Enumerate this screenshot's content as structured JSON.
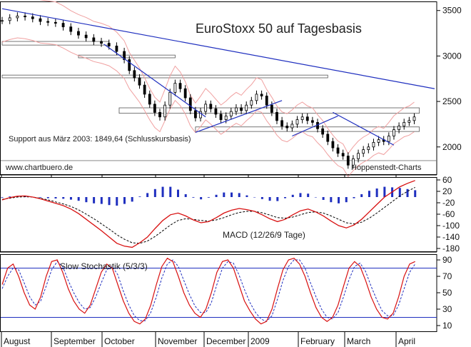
{
  "colors": {
    "candle": "#000000",
    "trendline": "#1f2fbf",
    "bands": "#f0a0a0",
    "macd_line": "#d81010",
    "signal_line": "#000000",
    "histogram": "#1f2fbf",
    "stoch_k": "#d81010",
    "stoch_d": "#1f2fbf",
    "grid": "#cccccc"
  },
  "chart_data": [
    {
      "type": "candlestick",
      "title": "EuroStoxx 50 auf Tagesbasis",
      "annotations": [
        "Support aus März 2003: 1849,64 (Schlusskursbasis)",
        "www.chartbuero.de",
        "Hoppenstedt-Charts"
      ],
      "yticks": [
        2000,
        2500,
        3000,
        3500
      ],
      "ylim": [
        1700,
        3600
      ],
      "support_level": 1849.64,
      "x_months": [
        "August",
        "September",
        "October",
        "November",
        "December",
        "2009",
        "February",
        "March",
        "April"
      ],
      "x_range_days": [
        0,
        170
      ],
      "close_series": [
        [
          0,
          3390
        ],
        [
          3,
          3420
        ],
        [
          6,
          3440
        ],
        [
          9,
          3430
        ],
        [
          12,
          3410
        ],
        [
          15,
          3380
        ],
        [
          18,
          3370
        ],
        [
          21,
          3360
        ],
        [
          24,
          3320
        ],
        [
          27,
          3270
        ],
        [
          30,
          3230
        ],
        [
          33,
          3200
        ],
        [
          36,
          3160
        ],
        [
          39,
          3140
        ],
        [
          42,
          3110
        ],
        [
          45,
          3050
        ],
        [
          48,
          2960
        ],
        [
          50,
          2840
        ],
        [
          52,
          2760
        ],
        [
          54,
          2680
        ],
        [
          56,
          2580
        ],
        [
          58,
          2470
        ],
        [
          60,
          2380
        ],
        [
          62,
          2330
        ],
        [
          64,
          2460
        ],
        [
          66,
          2600
        ],
        [
          68,
          2700
        ],
        [
          70,
          2640
        ],
        [
          72,
          2540
        ],
        [
          74,
          2400
        ],
        [
          76,
          2320
        ],
        [
          78,
          2390
        ],
        [
          80,
          2470
        ],
        [
          82,
          2420
        ],
        [
          84,
          2360
        ],
        [
          86,
          2300
        ],
        [
          88,
          2340
        ],
        [
          90,
          2390
        ],
        [
          92,
          2430
        ],
        [
          94,
          2400
        ],
        [
          96,
          2460
        ],
        [
          98,
          2510
        ],
        [
          100,
          2580
        ],
        [
          102,
          2560
        ],
        [
          104,
          2460
        ],
        [
          106,
          2380
        ],
        [
          108,
          2290
        ],
        [
          110,
          2230
        ],
        [
          112,
          2210
        ],
        [
          114,
          2250
        ],
        [
          116,
          2300
        ],
        [
          118,
          2330
        ],
        [
          120,
          2290
        ],
        [
          122,
          2270
        ],
        [
          124,
          2200
        ],
        [
          126,
          2140
        ],
        [
          128,
          2060
        ],
        [
          130,
          1990
        ],
        [
          132,
          1930
        ],
        [
          134,
          1900
        ],
        [
          136,
          1800
        ],
        [
          138,
          1870
        ],
        [
          140,
          1930
        ],
        [
          142,
          1970
        ],
        [
          144,
          2000
        ],
        [
          146,
          2050
        ],
        [
          148,
          2080
        ],
        [
          150,
          2060
        ],
        [
          152,
          2120
        ],
        [
          154,
          2190
        ],
        [
          156,
          2230
        ],
        [
          158,
          2270
        ],
        [
          160,
          2290
        ],
        [
          162,
          2330
        ]
      ],
      "trendlines": [
        {
          "from": [
            0,
            3520
          ],
          "to": [
            170,
            2640
          ]
        },
        {
          "from": [
            40,
            3130
          ],
          "to": [
            80,
            2330
          ]
        },
        {
          "from": [
            76,
            2160
          ],
          "to": [
            110,
            2510
          ]
        },
        {
          "from": [
            114,
            2120
          ],
          "to": [
            132,
            2340
          ]
        },
        {
          "from": [
            130,
            2380
          ],
          "to": [
            154,
            2020
          ]
        }
      ],
      "zones": [
        {
          "x": [
            0,
            42
          ],
          "y": [
            3120,
            3160
          ]
        },
        {
          "x": [
            30,
            68
          ],
          "y": [
            2980,
            3010
          ]
        },
        {
          "x": [
            0,
            128
          ],
          "y": [
            2760,
            2790
          ]
        },
        {
          "x": [
            46,
            164
          ],
          "y": [
            2370,
            2430
          ]
        },
        {
          "x": [
            76,
            164
          ],
          "y": [
            2170,
            2220
          ]
        }
      ]
    },
    {
      "type": "line",
      "title": "MACD (12/26/9 Tage)",
      "yticks": [
        60,
        20,
        -20,
        -60,
        -100,
        -140,
        -180
      ],
      "ylim": [
        -190,
        70
      ],
      "series": [
        {
          "values": [
            -10,
            -2,
            3,
            4,
            0,
            -6,
            -14,
            -22,
            -30,
            -42,
            -58,
            -78,
            -98,
            -118,
            -140,
            -162,
            -172,
            -176,
            -160,
            -140,
            -110,
            -82,
            -62,
            -56,
            -66,
            -80,
            -90,
            -86,
            -72,
            -56,
            -46,
            -40,
            -44,
            -50,
            -62,
            -76,
            -86,
            -78,
            -62,
            -48,
            -42,
            -52,
            -66,
            -84,
            -100,
            -108,
            -98,
            -78,
            -52,
            -26,
            0,
            18,
            36,
            48,
            58
          ]
        },
        {
          "values": [
            -8,
            -4,
            0,
            1,
            0,
            -4,
            -10,
            -17,
            -24,
            -33,
            -45,
            -60,
            -76,
            -94,
            -112,
            -132,
            -148,
            -160,
            -162,
            -154,
            -138,
            -118,
            -98,
            -82,
            -76,
            -78,
            -82,
            -84,
            -80,
            -72,
            -62,
            -54,
            -50,
            -50,
            -55,
            -63,
            -72,
            -74,
            -70,
            -62,
            -54,
            -52,
            -56,
            -66,
            -78,
            -90,
            -94,
            -88,
            -74,
            -56,
            -36,
            -16,
            4,
            20,
            34
          ]
        },
        {
          "values": [
            -2,
            2,
            3,
            3,
            0,
            -2,
            -4,
            -5,
            -6,
            -9,
            -13,
            -18,
            -22,
            -24,
            -28,
            -30,
            -24,
            -16,
            2,
            14,
            28,
            36,
            36,
            26,
            10,
            -2,
            -8,
            -2,
            8,
            16,
            16,
            14,
            6,
            0,
            -7,
            -13,
            -14,
            -4,
            8,
            14,
            12,
            0,
            -10,
            -18,
            -22,
            -18,
            -4,
            10,
            22,
            30,
            36,
            34,
            32,
            28,
            24
          ]
        }
      ]
    },
    {
      "type": "line",
      "title": "Slow Stochastik (5/3/3)",
      "yticks": [
        90,
        70,
        50,
        30,
        10
      ],
      "ylim": [
        3,
        97
      ],
      "reference_lines": [
        80,
        20
      ],
      "series": [
        {
          "values": [
            60,
            80,
            85,
            70,
            50,
            35,
            30,
            45,
            70,
            88,
            90,
            75,
            55,
            40,
            30,
            25,
            35,
            55,
            75,
            85,
            80,
            60,
            40,
            25,
            15,
            12,
            18,
            35,
            60,
            82,
            92,
            88,
            70,
            50,
            35,
            25,
            20,
            30,
            50,
            75,
            88,
            90,
            80,
            60,
            40,
            28,
            18,
            12,
            15,
            30,
            55,
            78,
            90,
            92,
            85,
            70,
            50,
            32,
            20,
            15,
            20,
            35,
            58,
            80,
            88,
            82,
            65,
            45,
            30,
            20,
            18,
            25,
            45,
            70,
            85,
            88
          ]
        },
        {
          "values": [
            55,
            70,
            80,
            78,
            62,
            45,
            35,
            40,
            58,
            78,
            88,
            82,
            65,
            50,
            38,
            30,
            32,
            45,
            62,
            78,
            82,
            72,
            52,
            35,
            22,
            16,
            16,
            26,
            45,
            68,
            85,
            90,
            82,
            65,
            48,
            34,
            26,
            26,
            38,
            60,
            80,
            88,
            86,
            72,
            54,
            38,
            26,
            18,
            15,
            22,
            42,
            65,
            82,
            90,
            90,
            80,
            62,
            45,
            30,
            20,
            18,
            26,
            45,
            66,
            82,
            86,
            76,
            58,
            42,
            28,
            22,
            22,
            35,
            55,
            75,
            85
          ]
        }
      ]
    }
  ]
}
